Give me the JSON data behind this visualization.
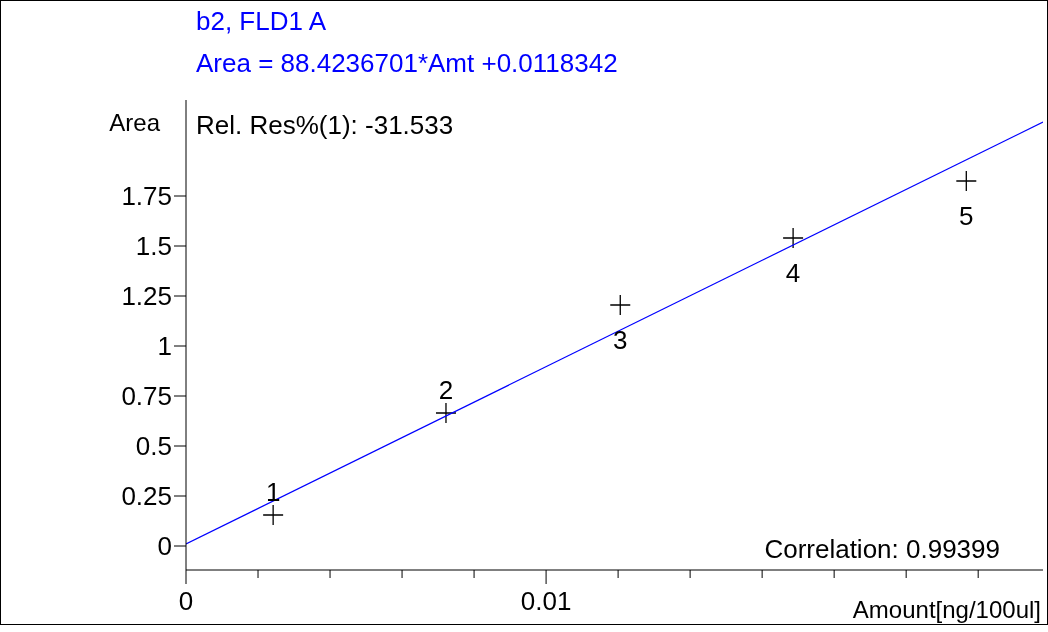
{
  "chart_data": {
    "type": "scatter",
    "title": "b2, FLD1 A",
    "subtitle": "Area = 88.4236701*Amt +0.0118342",
    "xlabel": "Amount[ng/100ul]",
    "ylabel": "Area",
    "xlim": [
      0,
      0.0238
    ],
    "ylim": [
      -0.12,
      2.23
    ],
    "xticks": [
      0,
      {
        "value": 0.002,
        "label": null
      },
      {
        "value": 0.004,
        "label": null
      },
      {
        "value": 0.006,
        "label": null
      },
      {
        "value": 0.008,
        "label": null
      },
      0.01,
      {
        "value": 0.012,
        "label": null
      },
      {
        "value": 0.014,
        "label": null
      },
      {
        "value": 0.016,
        "label": null
      },
      {
        "value": 0.018,
        "label": null
      },
      {
        "value": 0.02,
        "label": null
      },
      {
        "value": 0.022,
        "label": null
      }
    ],
    "yticks": [
      0,
      0.25,
      0.5,
      0.75,
      1,
      1.25,
      1.5,
      1.75
    ],
    "annotations": [
      "Rel. Res%(1): -31.533",
      "Correlation: 0.99399",
      {
        "text": "1",
        "x": 0.00242,
        "y": 0.155
      },
      {
        "text": "2",
        "x": 0.00722,
        "y": 0.665
      },
      {
        "text": "3",
        "x": 0.01206,
        "y": 1.205
      },
      {
        "text": "4",
        "x": 0.01686,
        "y": 1.54
      },
      {
        "text": "5",
        "x": 0.02167,
        "y": 1.825
      }
    ],
    "series": [
      {
        "marker": "cross",
        "color": "#000000",
        "x": [
          0.00242,
          0.00722,
          0.01206,
          0.01686,
          0.02167
        ],
        "values": [
          0.155,
          0.665,
          1.205,
          1.54,
          1.825
        ]
      },
      {
        "type": "line",
        "color": "#0000ff",
        "x": [
          0,
          0.0238
        ],
        "values": [
          0.01,
          2.12
        ]
      }
    ]
  }
}
